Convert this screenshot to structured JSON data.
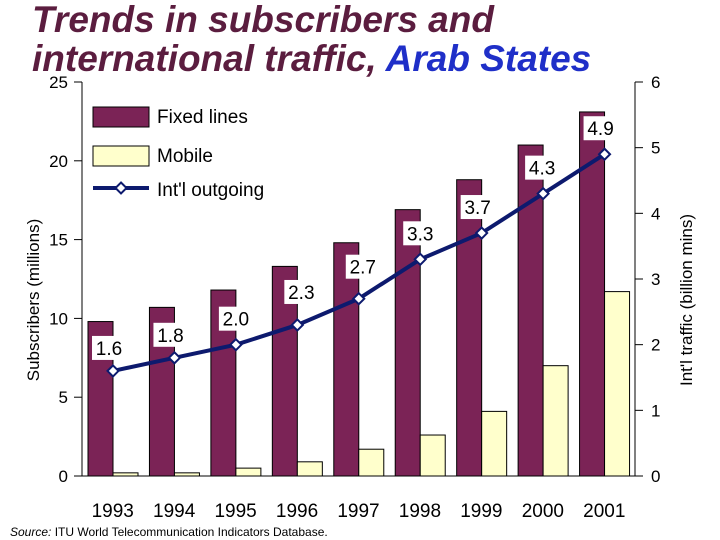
{
  "title": {
    "line1": "Trends in subscribers and",
    "line2_prefix": "international traffic, ",
    "line2_highlight": "Arab States"
  },
  "source": {
    "label": "Source:",
    "text": " ITU World Telecommunication Indicators Database."
  },
  "colors": {
    "title": "#5b1d3f",
    "title_highlight": "#1f2fc8",
    "fixed_lines": "#7b2356",
    "mobile": "#ffffcc",
    "intl_line": "#0d1a6e"
  },
  "chart_data": {
    "type": "bar",
    "categories": [
      "1993",
      "1994",
      "1995",
      "1996",
      "1997",
      "1998",
      "1999",
      "2000",
      "2001"
    ],
    "series": [
      {
        "name": "Fixed lines",
        "type": "bar",
        "axis": "left",
        "values": [
          9.8,
          10.7,
          11.8,
          13.3,
          14.8,
          16.9,
          18.8,
          21.0,
          23.1
        ]
      },
      {
        "name": "Mobile",
        "type": "bar",
        "axis": "left",
        "values": [
          0.2,
          0.2,
          0.5,
          0.9,
          1.7,
          2.6,
          4.1,
          7.0,
          11.7
        ]
      },
      {
        "name": "Int'l outgoing",
        "type": "line",
        "axis": "right",
        "values": [
          1.6,
          1.8,
          2.0,
          2.3,
          2.7,
          3.3,
          3.7,
          4.3,
          4.9
        ],
        "labels": [
          "1.6",
          "1.8",
          "2.0",
          "2.3",
          "2.7",
          "3.3",
          "3.7",
          "4.3",
          "4.9"
        ]
      }
    ],
    "ylabel": "Subscribers (millions)",
    "ylim": [
      0,
      25
    ],
    "yticks": [
      "0",
      "5",
      "10",
      "15",
      "20",
      "25"
    ],
    "y2label": "Int'l traffic (billion mins)",
    "y2lim": [
      0,
      6
    ],
    "y2ticks": [
      "0",
      "1",
      "2",
      "3",
      "4",
      "5",
      "6"
    ],
    "legend": {
      "placement": "top-left",
      "items": [
        "Fixed lines",
        "Mobile",
        "Int'l outgoing"
      ]
    },
    "grid": false
  }
}
